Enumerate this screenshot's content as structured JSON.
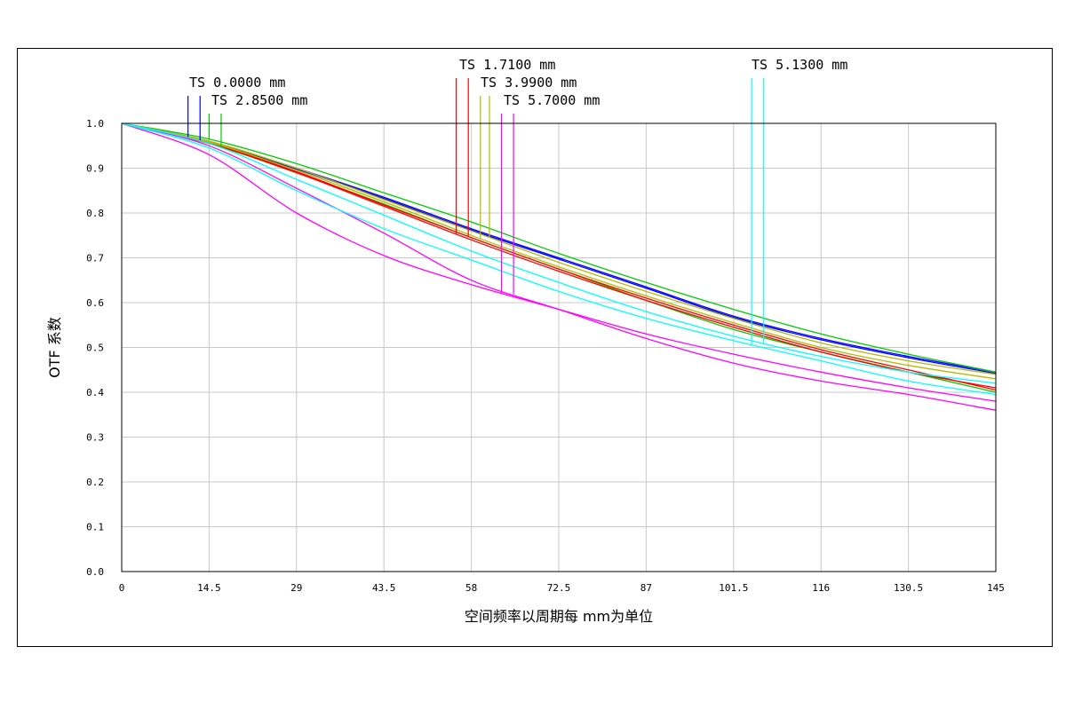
{
  "chart_data": {
    "type": "line",
    "title": "",
    "xlabel": "空间频率以周期每 mm为单位",
    "ylabel": "OTF 系数",
    "xlim": [
      0,
      145
    ],
    "ylim": [
      0,
      1
    ],
    "grid": true,
    "x_ticks": [
      0,
      14.5,
      29,
      43.5,
      58,
      72.5,
      87,
      101.5,
      116,
      130.5,
      145
    ],
    "x_tick_labels": [
      "0",
      "14.5",
      "29",
      "43.5",
      "58",
      "72.5",
      "87",
      "101.5",
      "116",
      "130.5",
      "145"
    ],
    "y_ticks": [
      0,
      0.1,
      0.2,
      0.3,
      0.4,
      0.5,
      0.6,
      0.7,
      0.8,
      0.9,
      1.0
    ],
    "y_tick_labels": [
      "0.0",
      "0.1",
      "0.2",
      "0.3",
      "0.4",
      "0.5",
      "0.6",
      "0.7",
      "0.8",
      "0.9",
      "1.0"
    ],
    "x": [
      0,
      14.5,
      29,
      43.5,
      58,
      72.5,
      87,
      101.5,
      116,
      130.5,
      145
    ],
    "series": [
      {
        "name": "TS 0.0000 mm T",
        "field": "0.0000 mm",
        "color": "#0000ff",
        "marker_x": 11,
        "values": [
          1.0,
          0.96,
          0.9,
          0.835,
          0.765,
          0.7,
          0.635,
          0.57,
          0.52,
          0.48,
          0.445
        ]
      },
      {
        "name": "TS 0.0000 mm S",
        "field": "0.0000 mm",
        "color": "#0000ff",
        "marker_x": 13,
        "values": [
          1.0,
          0.958,
          0.898,
          0.832,
          0.762,
          0.697,
          0.632,
          0.567,
          0.517,
          0.477,
          0.442
        ]
      },
      {
        "name": "TS 2.8500 mm T",
        "field": "2.8500 mm",
        "color": "#00cc00",
        "marker_x": 14.5,
        "values": [
          1.0,
          0.965,
          0.91,
          0.845,
          0.78,
          0.71,
          0.645,
          0.585,
          0.53,
          0.485,
          0.445
        ]
      },
      {
        "name": "TS 2.8500 mm S",
        "field": "2.8500 mm",
        "color": "#00cc00",
        "marker_x": 16.5,
        "values": [
          1.0,
          0.955,
          0.89,
          0.82,
          0.745,
          0.675,
          0.605,
          0.54,
          0.49,
          0.445,
          0.4
        ]
      },
      {
        "name": "TS 1.7100 mm T",
        "field": "1.7100 mm",
        "color": "#ff0000",
        "marker_x": 55.5,
        "values": [
          1.0,
          0.955,
          0.89,
          0.815,
          0.74,
          0.67,
          0.605,
          0.545,
          0.49,
          0.445,
          0.41
        ]
      },
      {
        "name": "TS 1.7100 mm S",
        "field": "1.7100 mm",
        "color": "#ff0000",
        "marker_x": 57.5,
        "values": [
          1.0,
          0.957,
          0.892,
          0.818,
          0.745,
          0.675,
          0.61,
          0.55,
          0.495,
          0.45,
          0.405
        ]
      },
      {
        "name": "TS 3.9900 mm T",
        "field": "3.9900 mm",
        "color": "#b8b800",
        "marker_x": 59.5,
        "values": [
          1.0,
          0.958,
          0.895,
          0.825,
          0.75,
          0.68,
          0.615,
          0.555,
          0.5,
          0.46,
          0.43
        ]
      },
      {
        "name": "TS 3.9900 mm S",
        "field": "3.9900 mm",
        "color": "#b8b800",
        "marker_x": 61,
        "values": [
          1.0,
          0.96,
          0.9,
          0.83,
          0.76,
          0.69,
          0.625,
          0.565,
          0.51,
          0.47,
          0.44
        ]
      },
      {
        "name": "TS 5.7000 mm T",
        "field": "5.7000 mm",
        "color": "#ff00ff",
        "marker_x": 63,
        "values": [
          1.0,
          0.93,
          0.8,
          0.705,
          0.64,
          0.585,
          0.53,
          0.485,
          0.445,
          0.41,
          0.38
        ]
      },
      {
        "name": "TS 5.7000 mm S",
        "field": "5.7000 mm",
        "color": "#ff00ff",
        "marker_x": 65,
        "values": [
          1.0,
          0.95,
          0.855,
          0.755,
          0.65,
          0.585,
          0.52,
          0.465,
          0.425,
          0.395,
          0.36
        ]
      },
      {
        "name": "TS 5.1300 mm T",
        "field": "5.1300 mm",
        "color": "#00ffff",
        "marker_x": 104.5,
        "values": [
          1.0,
          0.945,
          0.85,
          0.765,
          0.695,
          0.625,
          0.565,
          0.515,
          0.47,
          0.425,
          0.395
        ]
      },
      {
        "name": "TS 5.1300 mm S",
        "field": "5.1300 mm",
        "color": "#00ffff",
        "marker_x": 106.5,
        "values": [
          1.0,
          0.955,
          0.875,
          0.795,
          0.715,
          0.645,
          0.58,
          0.525,
          0.48,
          0.445,
          0.42
        ]
      }
    ],
    "legend_labels": [
      {
        "text": "TS 0.0000 mm",
        "row": 2,
        "col": 0
      },
      {
        "text": "TS 2.8500 mm",
        "row": 3,
        "col": 0
      },
      {
        "text": "TS 1.7100 mm",
        "row": 1,
        "col": 1
      },
      {
        "text": "TS 3.9900 mm",
        "row": 2,
        "col": 1
      },
      {
        "text": "TS 5.7000 mm",
        "row": 3,
        "col": 1
      },
      {
        "text": "TS 5.1300 mm",
        "row": 1,
        "col": 2
      }
    ]
  }
}
